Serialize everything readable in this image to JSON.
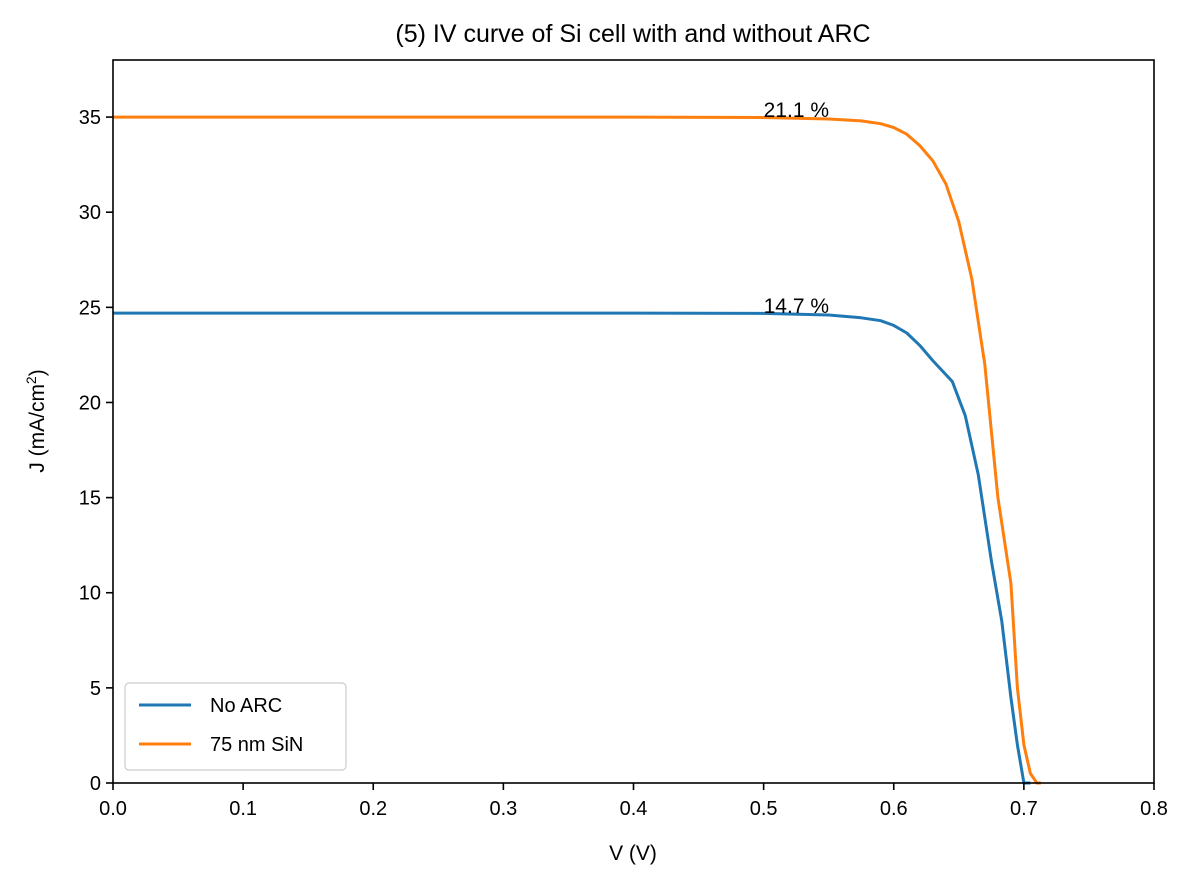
{
  "chart_data": {
    "type": "line",
    "title": "(5) IV curve of Si cell with and without ARC",
    "xlabel": "V (V)",
    "ylabel_main": "J (mA/cm",
    "ylabel_sup": "2",
    "ylabel_close": ")",
    "xlim": [
      0.0,
      0.8
    ],
    "ylim": [
      0,
      38
    ],
    "x_ticks": [
      0.0,
      0.1,
      0.2,
      0.3,
      0.4,
      0.5,
      0.6,
      0.7,
      0.8
    ],
    "x_tick_labels": [
      "0.0",
      "0.1",
      "0.2",
      "0.3",
      "0.4",
      "0.5",
      "0.6",
      "0.7",
      "0.8"
    ],
    "y_ticks": [
      0,
      5,
      10,
      15,
      20,
      25,
      30,
      35
    ],
    "y_tick_labels": [
      "0",
      "5",
      "10",
      "15",
      "20",
      "25",
      "30",
      "35"
    ],
    "grid": false,
    "legend_position": "lower-left",
    "series": [
      {
        "name": "No ARC",
        "color": "#1f77b4",
        "x": [
          0.0,
          0.1,
          0.2,
          0.3,
          0.4,
          0.5,
          0.55,
          0.575,
          0.59,
          0.6,
          0.61,
          0.62,
          0.63,
          0.645,
          0.655,
          0.665,
          0.675,
          0.683,
          0.69,
          0.695,
          0.7,
          0.703,
          0.705
        ],
        "y": [
          24.7,
          24.7,
          24.7,
          24.7,
          24.7,
          24.68,
          24.6,
          24.45,
          24.3,
          24.05,
          23.65,
          23.0,
          22.2,
          21.1,
          19.3,
          16.2,
          11.7,
          8.5,
          4.5,
          2.0,
          0.0,
          0.0,
          0.0
        ]
      },
      {
        "name": "75 nm SiN",
        "color": "#ff7f0e",
        "x": [
          0.0,
          0.1,
          0.2,
          0.3,
          0.4,
          0.5,
          0.55,
          0.575,
          0.59,
          0.6,
          0.61,
          0.62,
          0.63,
          0.64,
          0.65,
          0.66,
          0.67,
          0.68,
          0.69,
          0.695,
          0.7,
          0.705,
          0.71,
          0.713
        ],
        "y": [
          35.0,
          35.0,
          35.0,
          35.0,
          35.0,
          34.98,
          34.9,
          34.8,
          34.65,
          34.45,
          34.1,
          33.5,
          32.7,
          31.5,
          29.5,
          26.5,
          22.0,
          15.0,
          10.5,
          5.0,
          2.0,
          0.5,
          0.0,
          0.0
        ]
      }
    ],
    "annotations": [
      {
        "text": "21.1 %",
        "x": 0.5,
        "y": 35.0
      },
      {
        "text": "14.7 %",
        "x": 0.5,
        "y": 24.7
      }
    ]
  }
}
